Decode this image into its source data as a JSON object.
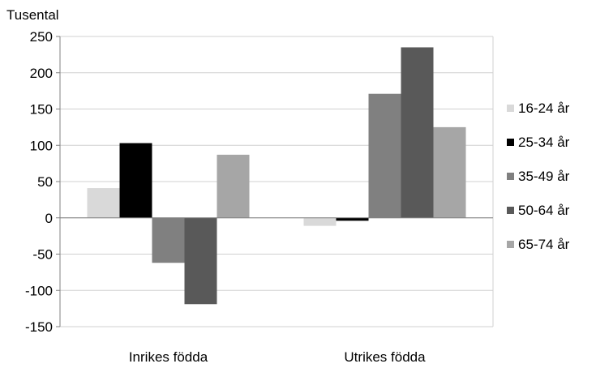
{
  "chart_data": {
    "type": "bar",
    "ylabel": "Tusental",
    "categories": [
      "Inrikes födda",
      "Utrikes födda"
    ],
    "ylim": [
      -150,
      250
    ],
    "yticks": [
      250,
      200,
      150,
      100,
      50,
      0,
      -50,
      -100,
      -150
    ],
    "grid": true,
    "legend_position": "right",
    "series": [
      {
        "name": "16-24 år",
        "color": "#d9d9d9",
        "values": [
          41,
          -11
        ]
      },
      {
        "name": "25-34 år",
        "color": "#000000",
        "values": [
          103,
          -4
        ]
      },
      {
        "name": "35-49 år",
        "color": "#808080",
        "values": [
          -62,
          171
        ]
      },
      {
        "name": "50-64 år",
        "color": "#595959",
        "values": [
          -119,
          235
        ]
      },
      {
        "name": "65-74 år",
        "color": "#a6a6a6",
        "values": [
          87,
          125
        ]
      }
    ]
  }
}
